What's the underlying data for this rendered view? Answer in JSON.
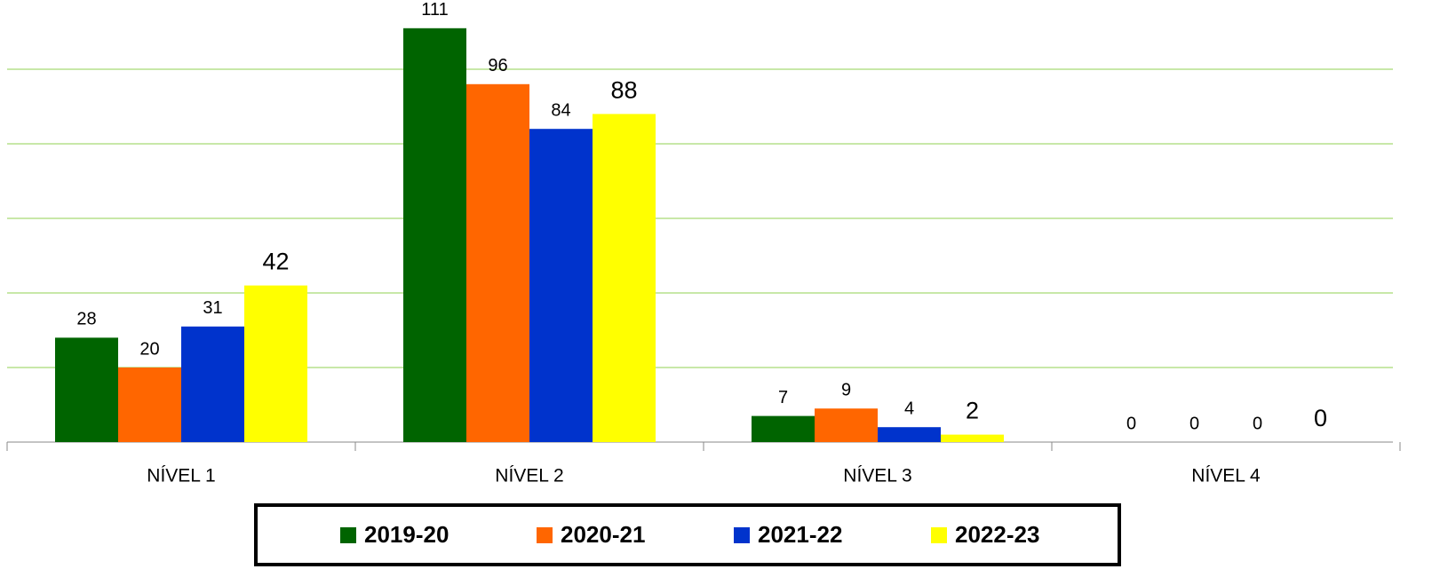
{
  "chart_data": {
    "type": "bar",
    "categories": [
      "NÍVEL 1",
      "NÍVEL 2",
      "NÍVEL 3",
      "NÍVEL 4"
    ],
    "series": [
      {
        "name": "2019-20",
        "color": "#006400",
        "values": [
          28,
          111,
          7,
          0
        ]
      },
      {
        "name": "2020-21",
        "color": "#ff6600",
        "values": [
          20,
          96,
          9,
          0
        ]
      },
      {
        "name": "2021-22",
        "color": "#0033cc",
        "values": [
          31,
          84,
          4,
          0
        ]
      },
      {
        "name": "2022-23",
        "color": "#ffff00",
        "values": [
          42,
          88,
          2,
          0
        ]
      }
    ],
    "ylim": [
      0,
      120
    ],
    "yticks": [
      0,
      20,
      40,
      60,
      80,
      100
    ],
    "grid": true,
    "legend": "bottom"
  }
}
